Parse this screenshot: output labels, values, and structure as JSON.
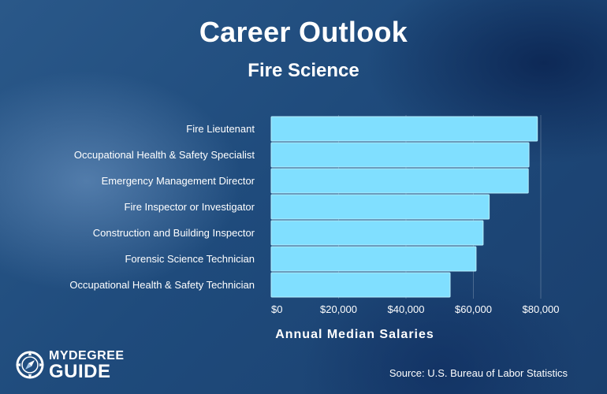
{
  "header": {
    "title": "Career Outlook",
    "subtitle": "Fire Science"
  },
  "chart_data": {
    "type": "bar",
    "orientation": "horizontal",
    "categories": [
      "Fire Lieutenant",
      "Occupational Health & Safety Specialist",
      "Emergency Management Director",
      "Fire Inspector or Investigator",
      "Construction and Building Inspector",
      "Forensic Science Technician",
      "Occupational Health & Safety Technician"
    ],
    "values": [
      79000,
      76500,
      76300,
      64700,
      62900,
      60800,
      53100
    ],
    "xlabel": "Annual Median Salaries",
    "ylabel": "",
    "xlim": [
      0,
      80000
    ],
    "xticks": [
      0,
      20000,
      40000,
      60000,
      80000
    ],
    "xtick_labels": [
      "$0",
      "$20,000",
      "$40,000",
      "$60,000",
      "$80,000"
    ],
    "bar_color": "#80dfff",
    "grid": true
  },
  "footer": {
    "logo_top": "MYDEGREE",
    "logo_bottom": "GUIDE",
    "source": "Source: U.S. Bureau of Labor Statistics"
  },
  "colors": {
    "bar": "#80dfff",
    "bar_edge": "#b8efff",
    "text": "#ffffff"
  }
}
